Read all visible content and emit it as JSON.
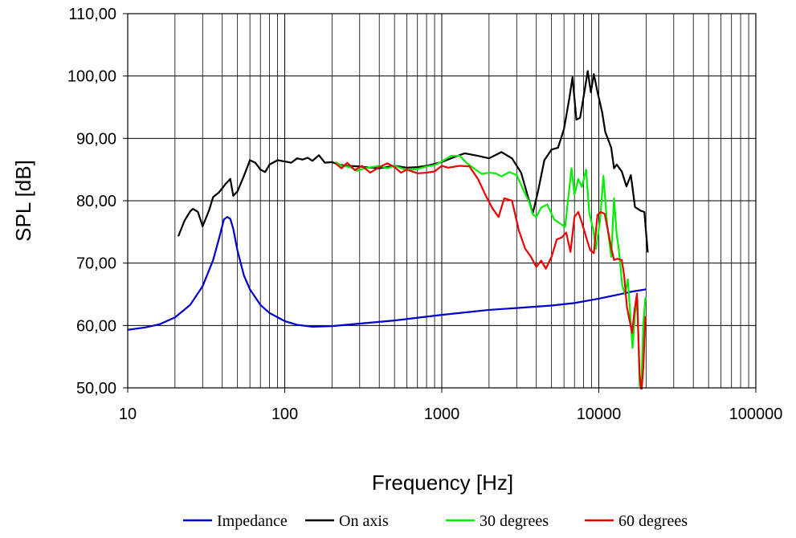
{
  "chart_data": {
    "type": "line",
    "xlabel": "Frequency [Hz]",
    "ylabel": "SPL [dB]",
    "xscale": "log",
    "xlim": [
      10,
      100000
    ],
    "ylim": [
      50,
      110
    ],
    "x_ticks": [
      "10",
      "100",
      "1000",
      "10000",
      "100000"
    ],
    "y_ticks": [
      "50,00",
      "60,00",
      "70,00",
      "80,00",
      "90,00",
      "100,00",
      "110,00"
    ],
    "grid": true,
    "legend_position": "bottom",
    "series": [
      {
        "name": "Impedance",
        "color": "#0000cc",
        "points": [
          [
            10,
            59.3
          ],
          [
            13,
            59.7
          ],
          [
            16,
            60.2
          ],
          [
            20,
            61.3
          ],
          [
            25,
            63.3
          ],
          [
            30,
            66.3
          ],
          [
            35,
            70.5
          ],
          [
            38,
            73.8
          ],
          [
            41,
            77.0
          ],
          [
            43,
            77.4
          ],
          [
            45,
            77.1
          ],
          [
            47,
            75.5
          ],
          [
            50,
            72.0
          ],
          [
            55,
            68.0
          ],
          [
            60,
            65.8
          ],
          [
            70,
            63.3
          ],
          [
            80,
            62.0
          ],
          [
            100,
            60.7
          ],
          [
            120,
            60.1
          ],
          [
            150,
            59.8
          ],
          [
            200,
            59.9
          ],
          [
            300,
            60.3
          ],
          [
            500,
            60.8
          ],
          [
            1000,
            61.7
          ],
          [
            2000,
            62.5
          ],
          [
            3000,
            62.8
          ],
          [
            5000,
            63.2
          ],
          [
            7000,
            63.6
          ],
          [
            10000,
            64.3
          ],
          [
            13000,
            64.9
          ],
          [
            16000,
            65.4
          ],
          [
            20000,
            65.8
          ]
        ]
      },
      {
        "name": "On axis",
        "color": "#000000",
        "points": [
          [
            21,
            74.3
          ],
          [
            23,
            76.8
          ],
          [
            25,
            78.3
          ],
          [
            26,
            78.7
          ],
          [
            28,
            78.2
          ],
          [
            30,
            75.9
          ],
          [
            33,
            78.5
          ],
          [
            35,
            80.6
          ],
          [
            38,
            81.3
          ],
          [
            42,
            82.7
          ],
          [
            45,
            83.5
          ],
          [
            47,
            80.8
          ],
          [
            50,
            81.5
          ],
          [
            55,
            84.0
          ],
          [
            60,
            86.5
          ],
          [
            65,
            86.1
          ],
          [
            70,
            85.0
          ],
          [
            75,
            84.6
          ],
          [
            80,
            85.8
          ],
          [
            90,
            86.5
          ],
          [
            100,
            86.3
          ],
          [
            110,
            86.1
          ],
          [
            120,
            86.8
          ],
          [
            130,
            86.6
          ],
          [
            140,
            86.9
          ],
          [
            150,
            86.4
          ],
          [
            165,
            87.3
          ],
          [
            180,
            86.1
          ],
          [
            200,
            86.2
          ],
          [
            220,
            85.8
          ],
          [
            250,
            85.6
          ],
          [
            300,
            85.5
          ],
          [
            350,
            85.3
          ],
          [
            400,
            85.2
          ],
          [
            500,
            85.6
          ],
          [
            600,
            85.3
          ],
          [
            700,
            85.4
          ],
          [
            800,
            85.6
          ],
          [
            1000,
            86.2
          ],
          [
            1200,
            87.0
          ],
          [
            1400,
            87.6
          ],
          [
            1700,
            87.2
          ],
          [
            2000,
            86.8
          ],
          [
            2400,
            87.8
          ],
          [
            2800,
            86.8
          ],
          [
            3200,
            84.5
          ],
          [
            3600,
            80.0
          ],
          [
            3800,
            78.0
          ],
          [
            4100,
            81.5
          ],
          [
            4500,
            86.5
          ],
          [
            5000,
            88.2
          ],
          [
            5500,
            88.5
          ],
          [
            6000,
            91.5
          ],
          [
            6500,
            96.5
          ],
          [
            6800,
            99.8
          ],
          [
            7200,
            93.0
          ],
          [
            7600,
            93.3
          ],
          [
            8100,
            97.5
          ],
          [
            8500,
            100.8
          ],
          [
            8900,
            97.4
          ],
          [
            9300,
            100.3
          ],
          [
            9800,
            97.5
          ],
          [
            10500,
            94.2
          ],
          [
            11000,
            91.0
          ],
          [
            12000,
            88.5
          ],
          [
            12500,
            85.2
          ],
          [
            13000,
            85.8
          ],
          [
            14000,
            84.7
          ],
          [
            15000,
            82.3
          ],
          [
            16000,
            84.1
          ],
          [
            17000,
            79.0
          ],
          [
            18500,
            78.4
          ],
          [
            19500,
            78.2
          ],
          [
            20500,
            71.7
          ]
        ]
      },
      {
        "name": "30 degrees",
        "color": "#00ee00",
        "points": [
          [
            210,
            86.2
          ],
          [
            230,
            85.6
          ],
          [
            260,
            85.4
          ],
          [
            290,
            84.8
          ],
          [
            320,
            85.2
          ],
          [
            360,
            85.4
          ],
          [
            400,
            85.6
          ],
          [
            450,
            85.2
          ],
          [
            500,
            85.6
          ],
          [
            600,
            84.9
          ],
          [
            700,
            85.1
          ],
          [
            800,
            85.5
          ],
          [
            900,
            85.7
          ],
          [
            1000,
            86.3
          ],
          [
            1150,
            87.2
          ],
          [
            1300,
            87.2
          ],
          [
            1450,
            86.0
          ],
          [
            1600,
            85.2
          ],
          [
            1800,
            84.3
          ],
          [
            2000,
            84.5
          ],
          [
            2200,
            84.4
          ],
          [
            2400,
            83.9
          ],
          [
            2700,
            84.6
          ],
          [
            3000,
            84.1
          ],
          [
            3300,
            81.8
          ],
          [
            3600,
            79.8
          ],
          [
            3800,
            77.8
          ],
          [
            4000,
            77.4
          ],
          [
            4300,
            78.9
          ],
          [
            4700,
            79.4
          ],
          [
            5200,
            77.0
          ],
          [
            5700,
            76.3
          ],
          [
            6100,
            75.8
          ],
          [
            6400,
            80.6
          ],
          [
            6700,
            85.2
          ],
          [
            7000,
            81.0
          ],
          [
            7400,
            83.5
          ],
          [
            7800,
            82.2
          ],
          [
            8300,
            85.0
          ],
          [
            8700,
            78.0
          ],
          [
            9200,
            75.5
          ],
          [
            9600,
            72.3
          ],
          [
            10200,
            77.0
          ],
          [
            10700,
            84.0
          ],
          [
            11300,
            76.2
          ],
          [
            12000,
            71.0
          ],
          [
            12500,
            80.4
          ],
          [
            13000,
            74.6
          ],
          [
            13400,
            72.3
          ],
          [
            14100,
            66.4
          ],
          [
            14700,
            65.0
          ],
          [
            15300,
            67.4
          ],
          [
            15800,
            62.3
          ],
          [
            16400,
            56.4
          ],
          [
            17000,
            62.0
          ],
          [
            17600,
            64.2
          ],
          [
            18200,
            50.3
          ],
          [
            18700,
            51.0
          ],
          [
            19200,
            60.2
          ],
          [
            19800,
            64.5
          ]
        ]
      },
      {
        "name": "60 degrees",
        "color": "#ee0000",
        "points": [
          [
            210,
            86.0
          ],
          [
            230,
            85.2
          ],
          [
            250,
            86.1
          ],
          [
            280,
            84.9
          ],
          [
            310,
            85.6
          ],
          [
            350,
            84.5
          ],
          [
            400,
            85.4
          ],
          [
            450,
            86.0
          ],
          [
            500,
            85.4
          ],
          [
            550,
            84.5
          ],
          [
            600,
            85.0
          ],
          [
            700,
            84.4
          ],
          [
            800,
            84.5
          ],
          [
            900,
            84.7
          ],
          [
            1000,
            85.6
          ],
          [
            1100,
            85.3
          ],
          [
            1300,
            85.6
          ],
          [
            1500,
            85.5
          ],
          [
            1700,
            83.5
          ],
          [
            1900,
            80.9
          ],
          [
            2100,
            78.8
          ],
          [
            2300,
            77.4
          ],
          [
            2500,
            80.4
          ],
          [
            2800,
            80.0
          ],
          [
            3100,
            75.2
          ],
          [
            3400,
            72.3
          ],
          [
            3700,
            71.0
          ],
          [
            4000,
            69.4
          ],
          [
            4300,
            70.4
          ],
          [
            4600,
            69.1
          ],
          [
            5000,
            71.0
          ],
          [
            5400,
            73.8
          ],
          [
            5800,
            74.1
          ],
          [
            6200,
            74.9
          ],
          [
            6600,
            71.8
          ],
          [
            7000,
            77.4
          ],
          [
            7400,
            78.2
          ],
          [
            7800,
            76.5
          ],
          [
            8300,
            74.2
          ],
          [
            8800,
            72.1
          ],
          [
            9300,
            71.6
          ],
          [
            9800,
            77.7
          ],
          [
            10300,
            78.2
          ],
          [
            10900,
            77.9
          ],
          [
            11400,
            75.4
          ],
          [
            12000,
            72.4
          ],
          [
            12500,
            70.5
          ],
          [
            13100,
            70.7
          ],
          [
            14000,
            70.5
          ],
          [
            14500,
            68.0
          ],
          [
            15100,
            63.0
          ],
          [
            15700,
            60.8
          ],
          [
            16300,
            58.8
          ],
          [
            16900,
            62.5
          ],
          [
            17500,
            65.1
          ],
          [
            18200,
            52.0
          ],
          [
            18700,
            49.4
          ],
          [
            19200,
            53.2
          ],
          [
            19800,
            61.5
          ]
        ]
      }
    ]
  }
}
